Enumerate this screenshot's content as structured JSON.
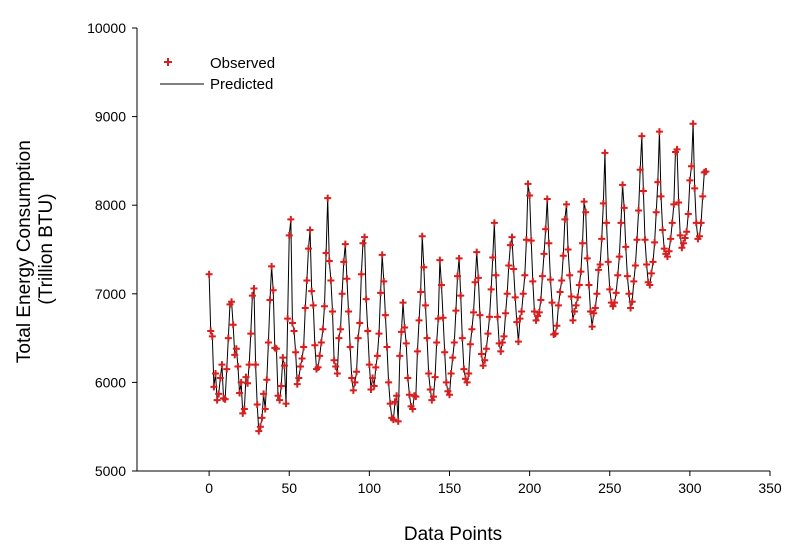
{
  "chart_data": {
    "type": "line",
    "xlabel": "Data Points",
    "ylabel_lines": [
      "Total Energy Consumption",
      "(Trillion BTU)"
    ],
    "xlim": [
      -45,
      350
    ],
    "ylim": [
      5000,
      10000
    ],
    "xticks": [
      0,
      50,
      100,
      150,
      200,
      250,
      300,
      350
    ],
    "yticks": [
      5000,
      6000,
      7000,
      8000,
      9000,
      10000
    ],
    "legend_position": "top-left",
    "grid": false,
    "colors": {
      "observed": "#d42020",
      "predicted": "#000000"
    },
    "series": [
      {
        "name": "Observed",
        "style": "plus-marker",
        "x_start": 0,
        "x_step": 1,
        "values": [
          7220,
          6580,
          6520,
          5950,
          6100,
          5800,
          5870,
          6050,
          6200,
          5820,
          5810,
          6150,
          6500,
          6880,
          6910,
          6650,
          6310,
          6380,
          6180,
          5880,
          6000,
          5650,
          5700,
          6060,
          5990,
          6200,
          6550,
          6980,
          7060,
          6200,
          5750,
          5450,
          5500,
          5600,
          5870,
          5700,
          6030,
          6450,
          6930,
          7310,
          7040,
          6390,
          6380,
          5850,
          5800,
          5960,
          6280,
          6190,
          5760,
          6720,
          7660,
          7840,
          6670,
          6580,
          6340,
          5980,
          6050,
          6180,
          6270,
          6400,
          6840,
          7150,
          7510,
          7720,
          7030,
          6870,
          6420,
          6150,
          6170,
          6300,
          6450,
          6600,
          6860,
          7460,
          8080,
          7370,
          7150,
          6800,
          6250,
          6180,
          6100,
          6500,
          6600,
          7000,
          7360,
          7560,
          7170,
          6800,
          6400,
          6050,
          5910,
          6000,
          6120,
          6500,
          6670,
          7220,
          7570,
          7640,
          6940,
          6580,
          6200,
          5920,
          6050,
          5960,
          6170,
          6300,
          6550,
          7010,
          7440,
          7140,
          6760,
          6400,
          6000,
          5760,
          5600,
          5580,
          5780,
          5850,
          5560,
          6300,
          6570,
          6900,
          6620,
          6440,
          6050,
          5860,
          5730,
          5700,
          5850,
          5840,
          6350,
          6700,
          7020,
          7650,
          7300,
          6870,
          6500,
          6100,
          5920,
          5800,
          5840,
          6060,
          6450,
          6720,
          7380,
          7100,
          6730,
          6340,
          6000,
          5900,
          5860,
          6100,
          6280,
          6450,
          6810,
          7200,
          7400,
          6980,
          6500,
          6150,
          6040,
          6000,
          6100,
          6430,
          6600,
          6790,
          7130,
          7470,
          7180,
          6760,
          6320,
          6190,
          6250,
          6380,
          6550,
          6740,
          7050,
          7410,
          7800,
          7210,
          6740,
          6440,
          6350,
          6450,
          6520,
          6780,
          7000,
          7320,
          7550,
          7640,
          7280,
          6960,
          6680,
          6460,
          6720,
          6800,
          7000,
          7210,
          7610,
          8240,
          8110,
          7600,
          7140,
          6800,
          6700,
          6750,
          6790,
          6930,
          7200,
          7450,
          7730,
          8070,
          7570,
          7160,
          6900,
          6540,
          6550,
          6640,
          6870,
          7020,
          7150,
          7430,
          7840,
          8010,
          7500,
          7210,
          6970,
          6700,
          6800,
          6870,
          6960,
          7100,
          7250,
          7570,
          8040,
          7920,
          7400,
          7100,
          6800,
          6630,
          6780,
          6840,
          7000,
          7270,
          7330,
          7620,
          8020,
          8590,
          7800,
          7360,
          7050,
          6900,
          6860,
          6900,
          7010,
          7210,
          7420,
          7800,
          8230,
          7970,
          7530,
          7200,
          7000,
          6840,
          6910,
          7140,
          7320,
          7610,
          7940,
          8400,
          8780,
          8160,
          7610,
          7330,
          7130,
          7100,
          7230,
          7360,
          7580,
          7920,
          8260,
          8830,
          8100,
          7720,
          7510,
          7450,
          7420,
          7480,
          7620,
          7800,
          8010,
          8600,
          8630,
          8030,
          7660,
          7520,
          7570,
          7630,
          7700,
          7900,
          8280,
          8440,
          8920,
          8190,
          7800,
          7620,
          7650,
          7800,
          8100,
          8370,
          8380
        ]
      },
      {
        "name": "Predicted",
        "style": "line",
        "same_as": "Observed"
      }
    ]
  }
}
